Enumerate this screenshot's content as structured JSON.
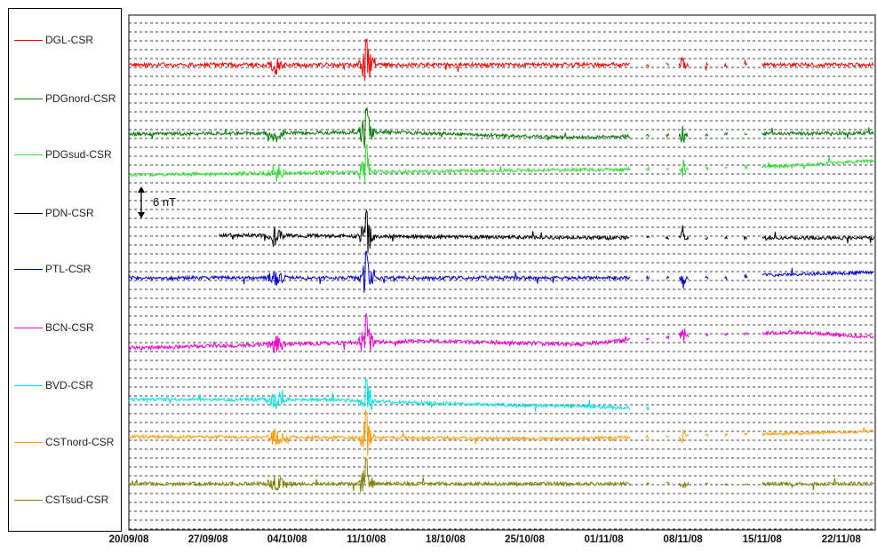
{
  "chart_data": {
    "type": "line",
    "title": "",
    "xlabel": "",
    "ylabel": "",
    "x_range": [
      "20/09/08",
      "25/11/08"
    ],
    "x_ticks": [
      "20/09/08",
      "27/09/08",
      "04/10/08",
      "11/10/08",
      "18/10/08",
      "25/10/08",
      "01/11/08",
      "08/11/08",
      "15/11/08",
      "22/11/08"
    ],
    "scale_bar": {
      "label": "6 nT",
      "value_nT": 6
    },
    "grid": "horizontal dashed",
    "legend_position": "left",
    "series": [
      {
        "name": "DGL-CSR",
        "color": "#ff0000",
        "start": "20/09/08",
        "noise": 1.0,
        "trend": [
          [
            0,
            0
          ],
          [
            1,
            0
          ]
        ]
      },
      {
        "name": "PDGnord-CSR",
        "color": "#007a00",
        "start": "20/09/08",
        "noise": 0.9,
        "trend": [
          [
            0,
            0
          ],
          [
            0.35,
            0.5
          ],
          [
            0.6,
            -1
          ],
          [
            0.8,
            0
          ],
          [
            1,
            0.3
          ]
        ]
      },
      {
        "name": "PDGsud-CSR",
        "color": "#33dd33",
        "start": "20/09/08",
        "noise": 0.9,
        "trend": [
          [
            0,
            -1
          ],
          [
            0.4,
            0
          ],
          [
            0.7,
            0.6
          ],
          [
            0.85,
            1.2
          ],
          [
            1,
            3
          ]
        ]
      },
      {
        "name": "PDN-CSR",
        "color": "#000000",
        "start": "28/09/08",
        "noise": 0.9,
        "trend": [
          [
            0,
            1
          ],
          [
            0.4,
            0.3
          ],
          [
            0.7,
            0
          ],
          [
            1,
            0
          ]
        ]
      },
      {
        "name": "PTL-CSR",
        "color": "#0000cc",
        "start": "20/09/08",
        "noise": 0.9,
        "trend": [
          [
            0,
            0
          ],
          [
            0.8,
            0
          ],
          [
            0.85,
            0.8
          ],
          [
            1,
            1.5
          ]
        ]
      },
      {
        "name": "BCN-CSR",
        "color": "#ee00cc",
        "start": "20/09/08",
        "noise": 1.0,
        "trend": [
          [
            0,
            -2
          ],
          [
            0.4,
            0
          ],
          [
            0.6,
            -1
          ],
          [
            0.75,
            1.5
          ],
          [
            0.9,
            2.5
          ],
          [
            1,
            1
          ]
        ]
      },
      {
        "name": "BVD-CSR",
        "color": "#00e0e0",
        "start": "20/09/08",
        "end": "06/11/08",
        "noise": 0.9,
        "trend": [
          [
            0,
            1
          ],
          [
            0.25,
            1
          ],
          [
            0.4,
            0
          ],
          [
            0.7,
            -1.5
          ],
          [
            1,
            -0.5
          ]
        ]
      },
      {
        "name": "CSTnord-CSR",
        "color": "#ff9900",
        "start": "20/09/08",
        "noise": 0.8,
        "trend": [
          [
            0,
            0
          ],
          [
            0.6,
            -0.5
          ],
          [
            0.8,
            0.5
          ],
          [
            1,
            1.5
          ]
        ]
      },
      {
        "name": "CSTsud-CSR",
        "color": "#808000",
        "start": "20/09/08",
        "noise": 0.9,
        "trend": [
          [
            0,
            0
          ],
          [
            1,
            0
          ]
        ]
      }
    ]
  }
}
